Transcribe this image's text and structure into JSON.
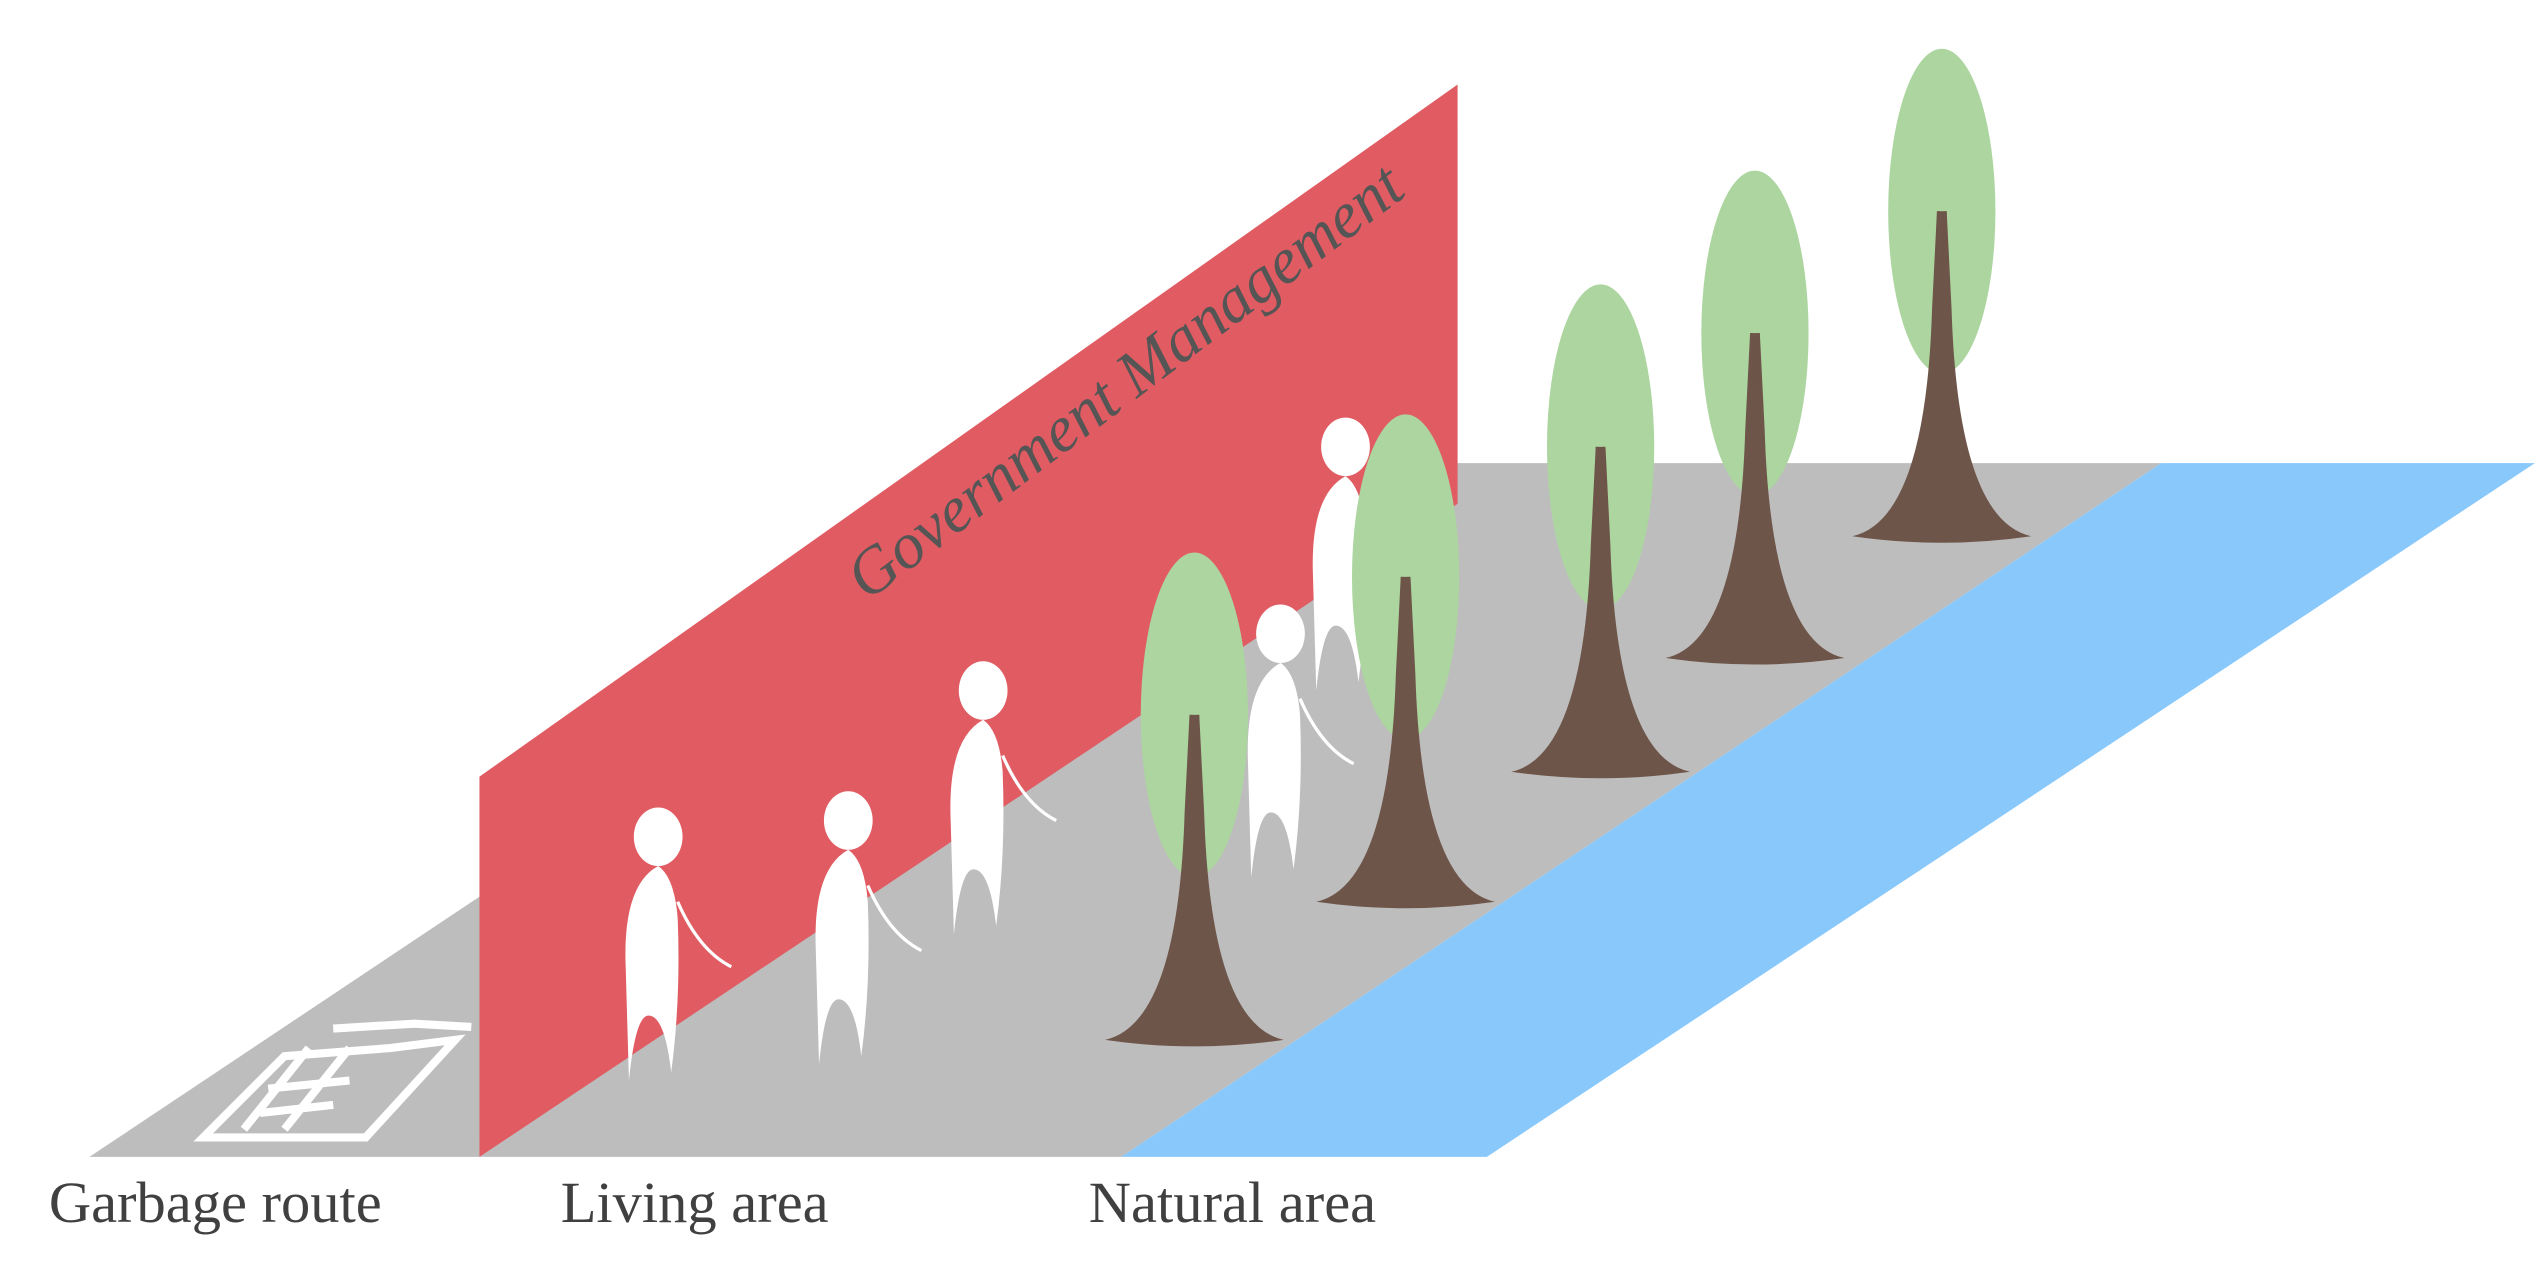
{
  "wall_label": "Government Management",
  "zones": [
    "Garbage route",
    "Living area",
    "Natural area"
  ]
}
